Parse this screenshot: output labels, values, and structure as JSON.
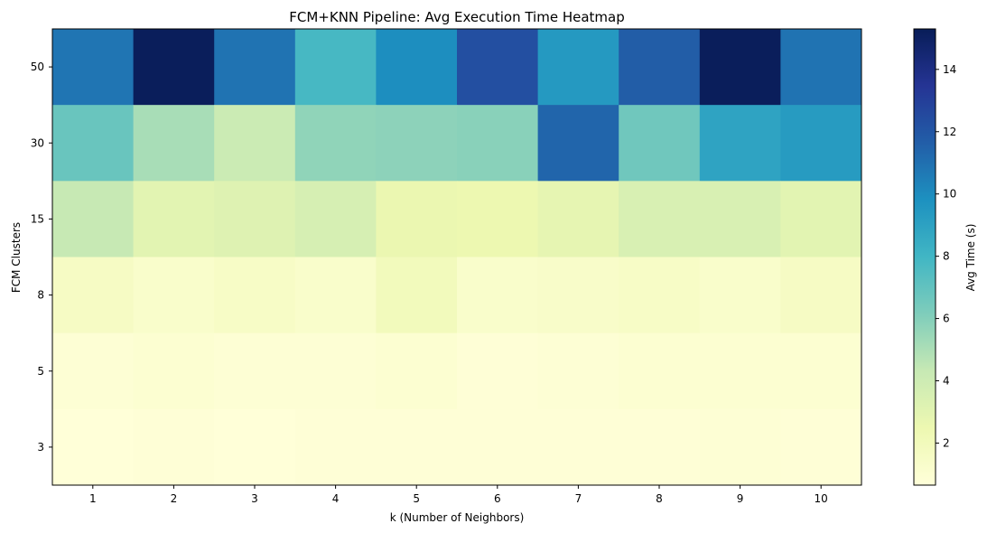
{
  "chart_data": {
    "type": "heatmap",
    "title": "FCM+KNN Pipeline: Avg Execution Time Heatmap",
    "xlabel": "k (Number of Neighbors)",
    "ylabel": "FCM Clusters",
    "x_categories": [
      "1",
      "2",
      "3",
      "4",
      "5",
      "6",
      "7",
      "8",
      "9",
      "10"
    ],
    "y_categories": [
      "50",
      "30",
      "15",
      "8",
      "5",
      "3"
    ],
    "values": [
      [
        10.8,
        15.2,
        10.9,
        7.8,
        9.9,
        12.3,
        9.4,
        11.7,
        15.2,
        10.9
      ],
      [
        6.8,
        5.1,
        4.1,
        5.7,
        5.8,
        5.9,
        11.4,
        6.6,
        8.9,
        9.3
      ],
      [
        4.3,
        3.0,
        3.2,
        3.6,
        2.6,
        2.5,
        2.8,
        3.5,
        3.5,
        3.0
      ],
      [
        1.6,
        1.3,
        1.5,
        1.3,
        2.0,
        1.3,
        1.4,
        1.5,
        1.3,
        1.6
      ],
      [
        0.9,
        1.0,
        0.9,
        0.9,
        1.0,
        0.8,
        0.9,
        1.0,
        1.0,
        1.0
      ],
      [
        0.7,
        0.8,
        0.7,
        0.8,
        0.8,
        0.8,
        0.8,
        0.8,
        0.9,
        0.8
      ]
    ],
    "colormap": "YlGnBu",
    "colorbar": {
      "label": "Avg Time (s)",
      "range": [
        0.65,
        15.3
      ],
      "ticks": [
        "2",
        "4",
        "6",
        "8",
        "10",
        "12",
        "14"
      ]
    },
    "grid": false
  }
}
